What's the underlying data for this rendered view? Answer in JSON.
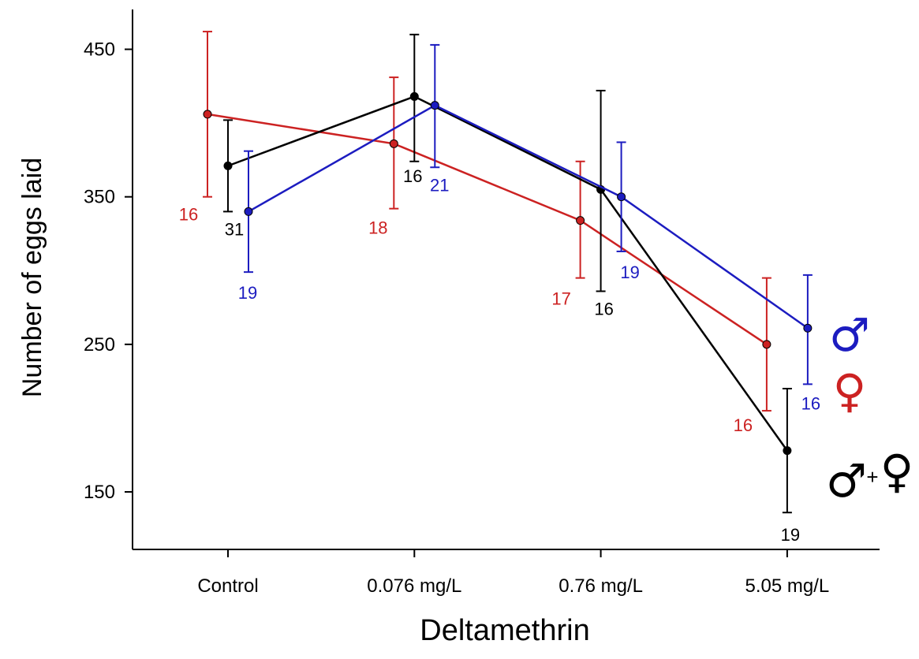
{
  "chart_data": {
    "type": "line",
    "title": "",
    "xlabel": "Deltamethrin",
    "ylabel": "Number of eggs laid",
    "categories": [
      "Control",
      "0.076 mg/L",
      "0.76 mg/L",
      "5.05 mg/L"
    ],
    "y_ticks": [
      {
        "value": 150,
        "label": "150"
      },
      {
        "value": 250,
        "label": "250"
      },
      {
        "value": 350,
        "label": "350"
      },
      {
        "value": 450,
        "label": "450"
      }
    ],
    "ylim": [
      111,
      477
    ],
    "grid": false,
    "series": [
      {
        "key": "female",
        "color": "#cc2222",
        "x_offset": -0.11,
        "values": [
          406,
          386,
          334,
          250
        ],
        "err_upper": [
          462,
          431,
          374,
          295
        ],
        "err_lower": [
          350,
          342,
          295,
          205
        ],
        "n": [
          "16",
          "18",
          "17",
          "16"
        ]
      },
      {
        "key": "both",
        "color": "#000000",
        "x_offset": 0.0,
        "values": [
          371,
          418,
          355,
          178
        ],
        "err_upper": [
          402,
          460,
          422,
          220
        ],
        "err_lower": [
          340,
          374,
          286,
          136
        ],
        "n": [
          "31",
          "16",
          "16",
          "19"
        ]
      },
      {
        "key": "male",
        "color": "#1c1cc0",
        "x_offset": 0.11,
        "values": [
          340,
          412,
          350,
          261
        ],
        "err_upper": [
          381,
          453,
          387,
          297
        ],
        "err_lower": [
          299,
          370,
          313,
          223
        ],
        "n": [
          "19",
          "21",
          "19",
          "16"
        ]
      }
    ],
    "legend": {
      "placement": "right",
      "entries": [
        {
          "key": "male",
          "symbol": "♂",
          "color": "#1c1cc0"
        },
        {
          "key": "female",
          "symbol": "♀",
          "color": "#cc2222"
        },
        {
          "key": "both",
          "symbol_a": "♂",
          "plus": "+",
          "symbol_b": "♀",
          "color": "#000000"
        }
      ]
    }
  }
}
